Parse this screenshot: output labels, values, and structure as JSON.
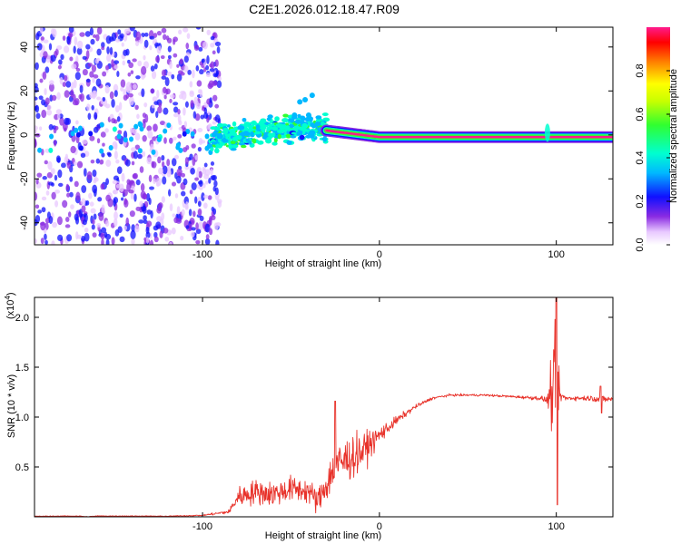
{
  "page_title": "C2E1.2026.012.18.47.R09",
  "chart_data": [
    {
      "type": "heatmap",
      "id": "spectrogram",
      "xlabel": "Height of straight line (km)",
      "ylabel": "Frequency (Hz)",
      "xlim": [
        -195,
        132
      ],
      "ylim": [
        -50,
        49
      ],
      "xticks": [
        -100,
        0,
        100
      ],
      "xtick_labels": [
        "-100",
        "0",
        "100"
      ],
      "yticks": [
        40,
        20,
        0,
        -20,
        -40
      ],
      "ytick_labels": [
        "40",
        "20",
        "0",
        "-20",
        "-40"
      ],
      "colorbar": {
        "label": "Normalized spectral amplitude",
        "range": [
          0,
          1
        ],
        "ticks": [
          0.0,
          0.2,
          0.4,
          0.6,
          0.8
        ],
        "tick_labels": [
          "0.0",
          "0.2",
          "0.4",
          "0.6",
          "0.8"
        ]
      },
      "features": [
        {
          "name": "broadband-noise",
          "x_range": [
            -195,
            -90
          ],
          "freq_range": [
            -50,
            49
          ],
          "amplitude": 0.15
        },
        {
          "name": "transition",
          "x_range": [
            -95,
            -30
          ],
          "center_freq": [
            [
              -95,
              -2
            ],
            [
              -60,
              3
            ],
            [
              -30,
              3
            ]
          ],
          "amplitude": 0.35
        },
        {
          "name": "carrier-line",
          "x_range": [
            -30,
            132
          ],
          "center_freq": [
            [
              -30,
              2
            ],
            [
              0,
              -1
            ],
            [
              50,
              -1
            ],
            [
              132,
              -1
            ]
          ],
          "amplitude": 0.95
        },
        {
          "name": "burst",
          "x": 95,
          "freq_range": [
            -5,
            8
          ],
          "amplitude": 0.4
        }
      ]
    },
    {
      "type": "line",
      "id": "snr",
      "xlabel": "Height of straight line (km)",
      "ylabel": "SNR (10 * v/v)",
      "y_multiplier": "(x10",
      "y_multiplier_exp": "4",
      "y_multiplier_close": ")",
      "xlim": [
        -195,
        132
      ],
      "ylim": [
        0,
        22000
      ],
      "xticks": [
        -100,
        0,
        100
      ],
      "xtick_labels": [
        "-100",
        "0",
        "100"
      ],
      "yticks": [
        5000,
        10000,
        15000,
        20000
      ],
      "ytick_labels": [
        "0.5",
        "1.0",
        "1.5",
        "2.0"
      ],
      "series": [
        {
          "name": "SNR",
          "color": "#e8322a",
          "x": [
            -195,
            -170,
            -165,
            -160,
            -140,
            -120,
            -100,
            -85,
            -80,
            -70,
            -60,
            -50,
            -40,
            -35,
            -25,
            -20,
            -10,
            0,
            10,
            20,
            30,
            40,
            50,
            60,
            70,
            80,
            90,
            95,
            98,
            100,
            102,
            105,
            110,
            120,
            125,
            132
          ],
          "values": [
            50,
            80,
            0,
            80,
            80,
            60,
            150,
            500,
            2000,
            2500,
            2300,
            2800,
            2600,
            1500,
            5000,
            5600,
            6500,
            8200,
            9700,
            11000,
            11900,
            12200,
            12200,
            12200,
            12100,
            12000,
            11900,
            11700,
            12500,
            12000,
            12200,
            11900,
            11900,
            11900,
            11800,
            11800
          ],
          "noise_sigma": [
            30,
            30,
            30,
            30,
            30,
            30,
            40,
            150,
            700,
            900,
            900,
            900,
            900,
            900,
            1600,
            1700,
            1300,
            600,
            300,
            150,
            100,
            80,
            80,
            80,
            80,
            100,
            150,
            300,
            3000,
            5000,
            500,
            200,
            150,
            200,
            300,
            150
          ],
          "annotations": [
            {
              "x": -25,
              "peak": 11600
            },
            {
              "x": 100,
              "peak": 22000,
              "trough": 1200
            },
            {
              "x": 125,
              "peak": 13100,
              "trough": 10400
            }
          ]
        }
      ]
    }
  ],
  "colors": {
    "line": "#e8322a",
    "noise": "#7a2af0",
    "carrier": "#ff0000"
  }
}
